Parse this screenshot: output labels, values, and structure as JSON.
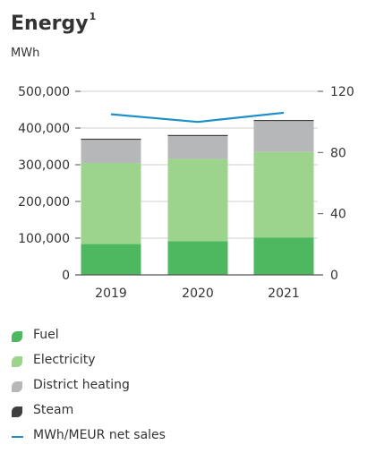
{
  "header": {
    "title": "Energy",
    "superscript": "1",
    "unit": "MWh"
  },
  "colors": {
    "fuel": "#4db860",
    "electricity": "#9cd48e",
    "district_heating": "#b6b7b9",
    "steam": "#3f3f3f",
    "line": "#1e8fc6",
    "grid": "#cfcfcf",
    "axis": "#555555"
  },
  "chart_data": {
    "type": "bar",
    "stacked": true,
    "categories": [
      "2019",
      "2020",
      "2021"
    ],
    "series": [
      {
        "name": "Fuel",
        "values": [
          84000,
          92000,
          102000
        ]
      },
      {
        "name": "Electricity",
        "values": [
          221000,
          224000,
          233000
        ]
      },
      {
        "name": "District heating",
        "values": [
          63000,
          62000,
          84000
        ]
      },
      {
        "name": "Steam",
        "values": [
          3000,
          3000,
          3000
        ]
      }
    ],
    "line_series": {
      "name": "MWh/MEUR net sales",
      "values": [
        105,
        100,
        106
      ],
      "axis": "right"
    },
    "left_axis": {
      "min": 0,
      "max": 500000,
      "ticks": [
        "0",
        "100,000",
        "200,000",
        "300,000",
        "400,000",
        "500,000"
      ]
    },
    "right_axis": {
      "min": 0,
      "max": 120,
      "ticks": [
        "0",
        "40",
        "80",
        "120"
      ]
    },
    "grid": true,
    "legend_position": "bottom-left"
  }
}
